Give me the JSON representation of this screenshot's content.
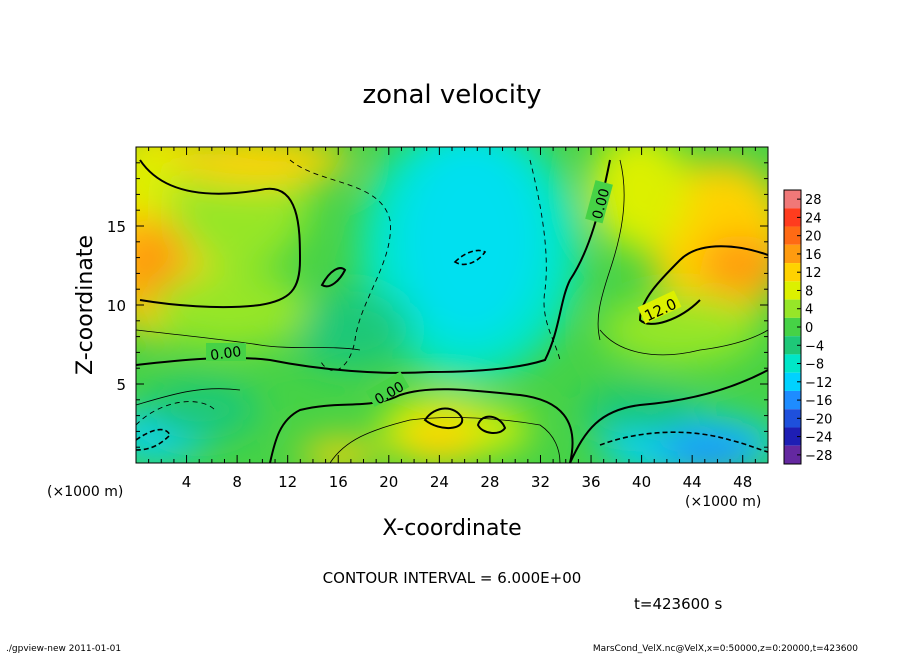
{
  "chart_data": {
    "type": "heatmap",
    "title": "zonal velocity",
    "xlabel": "X-coordinate",
    "ylabel": "Z-coordinate",
    "x_unit": "(×1000 m)",
    "y_unit": "(×1000 m)",
    "xlim": [
      0,
      50
    ],
    "ylim": [
      0,
      20
    ],
    "x_ticks": [
      "4",
      "8",
      "12",
      "16",
      "20",
      "24",
      "28",
      "32",
      "36",
      "40",
      "44",
      "48"
    ],
    "y_ticks": [
      "5",
      "10",
      "15"
    ],
    "contour_interval_text": "CONTOUR INTERVAL = 6.000E+00",
    "time_text": "t=423600 s",
    "contour_labels": [
      "0.00",
      "0.00",
      "0.00",
      "12.0"
    ],
    "colorbar": {
      "levels": [
        "28",
        "24",
        "20",
        "16",
        "12",
        "8",
        "4",
        "0",
        "−4",
        "−8",
        "−12",
        "−16",
        "−20",
        "−24",
        "−28"
      ],
      "colors": [
        "#f07878",
        "#ff3c1e",
        "#ff6a14",
        "#ff9b0f",
        "#ffd200",
        "#dcf000",
        "#96e628",
        "#46d246",
        "#1ec878",
        "#00e6c8",
        "#00d2ff",
        "#1e8cff",
        "#1e50dc",
        "#1e1eb4",
        "#6428a0"
      ]
    }
  },
  "footer": {
    "left": "./gpview-new  2011-01-01",
    "right": "MarsCond_VelX.nc@VelX,x=0:50000,z=0:20000,t=423600"
  }
}
